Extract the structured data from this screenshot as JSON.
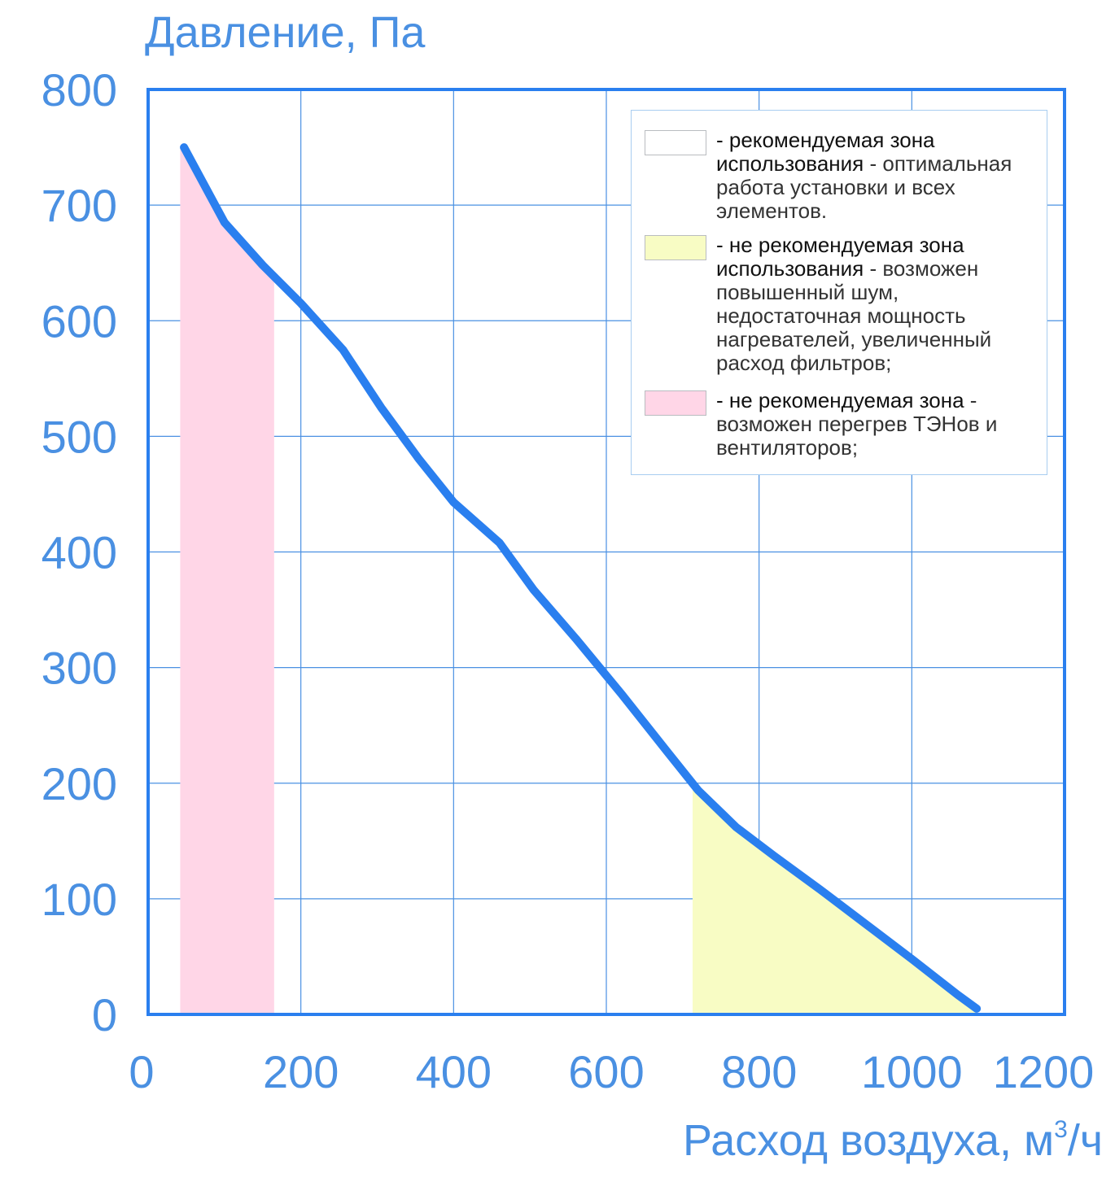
{
  "chart_data": {
    "type": "line",
    "ylabel": "Давление, Па",
    "xlabel": "Расход воздуха, м",
    "xlabel_sup": "3",
    "xlabel_tail": "/ч",
    "xlim": [
      0,
      1200
    ],
    "ylim": [
      0,
      800
    ],
    "x_ticks": [
      "0",
      "200",
      "400",
      "600",
      "800",
      "1000",
      "1200"
    ],
    "y_ticks": [
      "0",
      "100",
      "200",
      "300",
      "400",
      "500",
      "600",
      "700",
      "800"
    ],
    "grid": true,
    "series": [
      {
        "color": "#2a7fef",
        "x": [
          47,
          100,
          150,
          200,
          255,
          305,
          355,
          400,
          460,
          505,
          560,
          620,
          680,
          720,
          770,
          820,
          880,
          940,
          1000,
          1060,
          1085
        ],
        "y": [
          750,
          685,
          648,
          615,
          575,
          525,
          480,
          443,
          408,
          367,
          325,
          277,
          227,
          194,
          162,
          137,
          108,
          78,
          48,
          17,
          5
        ]
      }
    ],
    "zones": [
      {
        "color": "#ffd6e7",
        "x_range": [
          42,
          165
        ],
        "legend_strong": "- не рекомендуемая зона",
        "legend_weak": " - возможен перегрев ТЭНов и вентиляторов;"
      },
      {
        "color": "#f8fcc4",
        "x_range": [
          713,
          1085
        ],
        "legend_strong": "- не рекомендуемая зона использования",
        "legend_weak": " - возможен повышенный шум, недостаточная мощность нагревателей, увеличенный расход фильтров;"
      },
      {
        "color": "#ffffff",
        "legend_strong": "- рекомендуемая зона использования",
        "legend_weak": " - оптимальная работа установки и всех элементов."
      }
    ],
    "colors": {
      "axis": "#2a7fef",
      "grid": "#4a90e2",
      "text": "#4a90e2"
    }
  }
}
